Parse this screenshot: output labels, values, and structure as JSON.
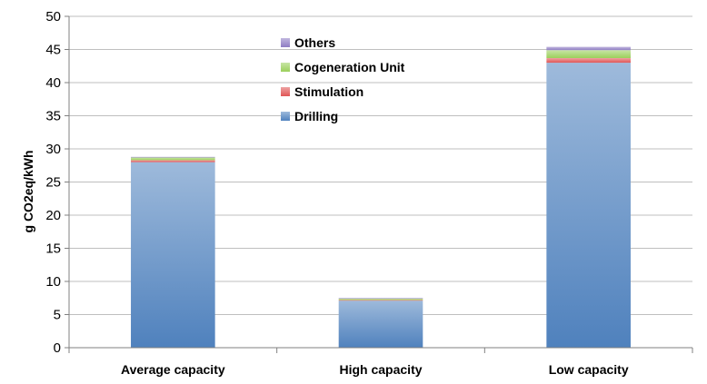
{
  "chart_data": {
    "type": "bar",
    "stacked": true,
    "categories": [
      "Average capacity",
      "High capacity",
      "Low capacity"
    ],
    "series": [
      {
        "name": "Drilling",
        "values": [
          28.0,
          7.1,
          43.0
        ],
        "color": "#4f81bd"
      },
      {
        "name": "Stimulation",
        "values": [
          0.3,
          0.1,
          0.7
        ],
        "color": "#e05555"
      },
      {
        "name": "Cogeneration Unit",
        "values": [
          0.4,
          0.2,
          1.2
        ],
        "color": "#9bcf5b"
      },
      {
        "name": "Others",
        "values": [
          0.1,
          0.1,
          0.5
        ],
        "color": "#8e7cc3"
      }
    ],
    "title": "",
    "xlabel": "",
    "ylabel": "g CO2eq/kWh",
    "ylim": [
      0,
      50
    ],
    "yticks": [
      0,
      5,
      10,
      15,
      20,
      25,
      30,
      35,
      40,
      45,
      50
    ],
    "grid": "horizontal",
    "legend_position": "top-center",
    "legend_order": [
      "Others",
      "Cogeneration Unit",
      "Stimulation",
      "Drilling"
    ]
  }
}
